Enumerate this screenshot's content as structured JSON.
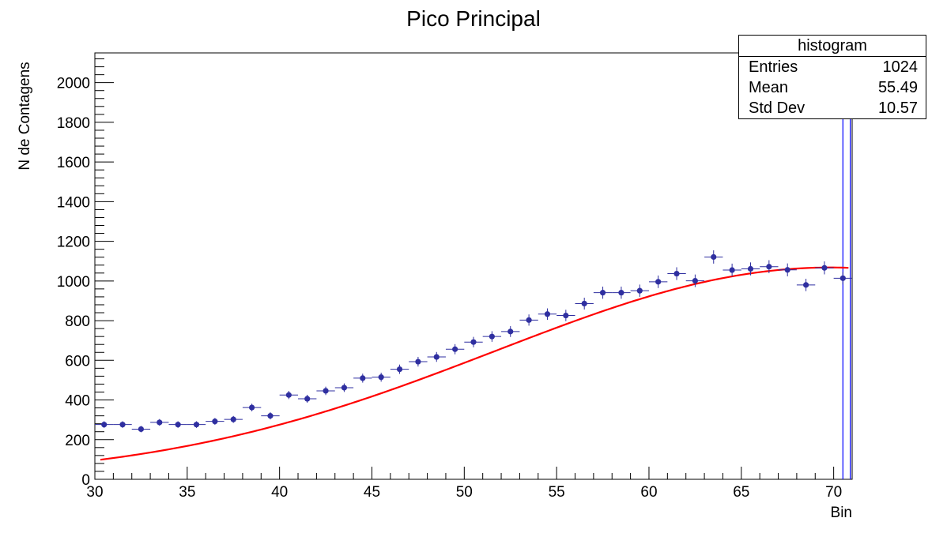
{
  "chart_data": {
    "type": "scatter",
    "title": "Pico Principal",
    "xlabel": "Bin",
    "ylabel": "N de Contagens",
    "xlim": [
      30,
      71
    ],
    "ylim": [
      0,
      2150
    ],
    "x_ticks": [
      30,
      35,
      40,
      45,
      50,
      55,
      60,
      65,
      70
    ],
    "y_ticks": [
      0,
      200,
      400,
      600,
      800,
      1000,
      1200,
      1400,
      1600,
      1800,
      2000
    ],
    "grid": false,
    "points": [
      {
        "x": 30.5,
        "y": 276
      },
      {
        "x": 31.5,
        "y": 276
      },
      {
        "x": 32.5,
        "y": 253
      },
      {
        "x": 33.5,
        "y": 287
      },
      {
        "x": 34.5,
        "y": 276
      },
      {
        "x": 35.5,
        "y": 276
      },
      {
        "x": 36.5,
        "y": 292
      },
      {
        "x": 37.5,
        "y": 302
      },
      {
        "x": 38.5,
        "y": 362
      },
      {
        "x": 39.5,
        "y": 320
      },
      {
        "x": 40.5,
        "y": 425
      },
      {
        "x": 41.5,
        "y": 406
      },
      {
        "x": 42.5,
        "y": 446
      },
      {
        "x": 43.5,
        "y": 462
      },
      {
        "x": 44.5,
        "y": 510
      },
      {
        "x": 45.5,
        "y": 515
      },
      {
        "x": 46.5,
        "y": 555
      },
      {
        "x": 47.5,
        "y": 593
      },
      {
        "x": 48.5,
        "y": 617
      },
      {
        "x": 49.5,
        "y": 656
      },
      {
        "x": 50.5,
        "y": 692
      },
      {
        "x": 51.5,
        "y": 720
      },
      {
        "x": 52.5,
        "y": 745
      },
      {
        "x": 53.5,
        "y": 803
      },
      {
        "x": 54.5,
        "y": 833
      },
      {
        "x": 55.5,
        "y": 826
      },
      {
        "x": 56.5,
        "y": 886
      },
      {
        "x": 57.5,
        "y": 941
      },
      {
        "x": 58.5,
        "y": 941
      },
      {
        "x": 59.5,
        "y": 951
      },
      {
        "x": 60.5,
        "y": 996
      },
      {
        "x": 61.5,
        "y": 1037
      },
      {
        "x": 62.5,
        "y": 1001
      },
      {
        "x": 63.5,
        "y": 1121
      },
      {
        "x": 64.5,
        "y": 1055
      },
      {
        "x": 65.5,
        "y": 1061
      },
      {
        "x": 66.5,
        "y": 1072
      },
      {
        "x": 67.5,
        "y": 1056
      },
      {
        "x": 68.5,
        "y": 980
      },
      {
        "x": 69.5,
        "y": 1066
      },
      {
        "x": 70.5,
        "y": 1014
      }
    ],
    "x_error": 0.5,
    "overflow_bar": {
      "x_from": 70.5,
      "x_to": 70.9
    },
    "fit": {
      "color": "#ff0000",
      "x_range": [
        30.3,
        70.8
      ],
      "gauss_amplitude": 1068,
      "gauss_mean": 69.8,
      "gauss_sigma": 18.1
    },
    "colors": {
      "points": "#2f2fa0",
      "fit": "#ff0000",
      "overflow": "#0000ff"
    }
  },
  "stats": {
    "title": "histogram",
    "rows": [
      {
        "label": "Entries",
        "value": "1024"
      },
      {
        "label": "Mean",
        "value": "55.49"
      },
      {
        "label": "Std Dev",
        "value": "10.57"
      }
    ]
  }
}
